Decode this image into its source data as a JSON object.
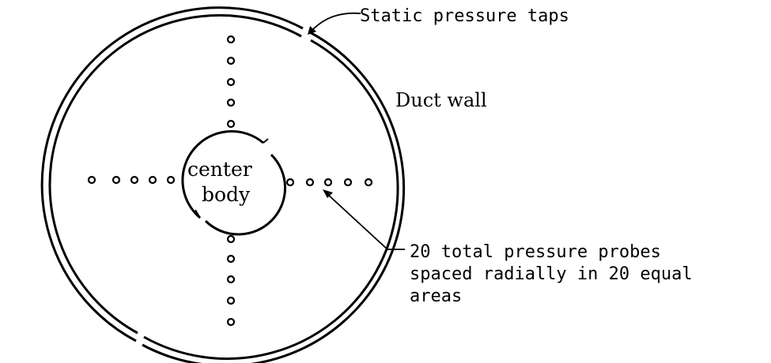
{
  "labels": {
    "static_taps": "Static pressure taps",
    "duct_wall": "Duct wall",
    "center_line1": "center",
    "center_line2": "body",
    "probes_line1": "20 total pressure probes",
    "probes_line2": "spaced radially in 20 equal",
    "probes_line3": "areas"
  },
  "probe_counts": {
    "top": 5,
    "bottom": 5,
    "left": 5,
    "right": 5
  },
  "colors": {
    "ink": "#000000",
    "background": "#ffffff"
  }
}
